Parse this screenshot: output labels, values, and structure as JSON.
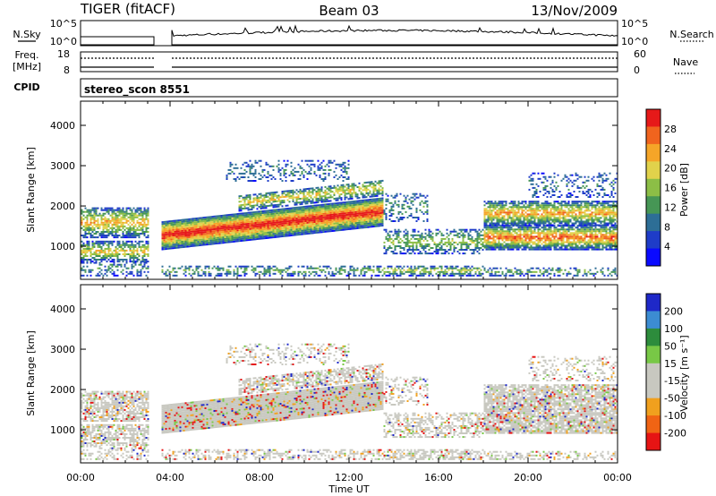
{
  "header": {
    "station": "TIGER (fitACF)",
    "beam": "Beam 03",
    "date": "13/Nov/2009"
  },
  "top_panel": {
    "left_label": "N.Sky",
    "right_label": "N.Search",
    "left_ticks": [
      "10^5",
      "10^0"
    ],
    "right_ticks": [
      "10^5",
      "10^0"
    ]
  },
  "freq_panel": {
    "left_label_1": "Freq.",
    "left_label_2": "[MHz]",
    "right_label": "Nave",
    "left_ticks": [
      "18",
      "8"
    ],
    "right_ticks": [
      "60",
      "0"
    ]
  },
  "cpid": {
    "label": "CPID",
    "value": "stereo_scon 8551"
  },
  "chart_data": [
    {
      "type": "heatmap",
      "name": "power",
      "xlabel": "Time UT",
      "ylabel": "Slant Range [km]",
      "xlim": [
        0,
        24
      ],
      "ylim": [
        180,
        4600
      ],
      "x_ticks": [
        "00:00",
        "04:00",
        "08:00",
        "12:00",
        "16:00",
        "20:00",
        "00:00"
      ],
      "y_ticks": [
        1000,
        2000,
        3000,
        4000
      ],
      "colorbar": {
        "label": "Power [dB]",
        "ticks": [
          "28",
          "24",
          "20",
          "16",
          "12",
          "8",
          "4"
        ],
        "colors": [
          "#e61919",
          "#f0641e",
          "#f5a528",
          "#e1d24b",
          "#8cbe46",
          "#469655",
          "#2d6e96",
          "#1e3cc8",
          "#0a0aff"
        ]
      },
      "data_gap": [
        3.0,
        3.6
      ]
    },
    {
      "type": "heatmap",
      "name": "velocity",
      "xlabel": "Time UT",
      "ylabel": "Slant Range [km]",
      "xlim": [
        0,
        24
      ],
      "ylim": [
        180,
        4600
      ],
      "x_ticks": [
        "00:00",
        "04:00",
        "08:00",
        "12:00",
        "16:00",
        "20:00",
        "00:00"
      ],
      "y_ticks": [
        1000,
        2000,
        3000,
        4000
      ],
      "colorbar": {
        "label": "Velocity [m s⁻¹]",
        "ticks": [
          "200",
          "100",
          "50",
          "15",
          "-15",
          "-50",
          "-100",
          "-200"
        ],
        "colors": [
          "#1e28c8",
          "#3c8cd2",
          "#2d8c3c",
          "#78c846",
          "#c8c8c0",
          "#c8c8c0",
          "#f0a01e",
          "#f06414",
          "#e61414"
        ]
      },
      "data_gap": [
        3.0,
        3.6
      ]
    }
  ]
}
